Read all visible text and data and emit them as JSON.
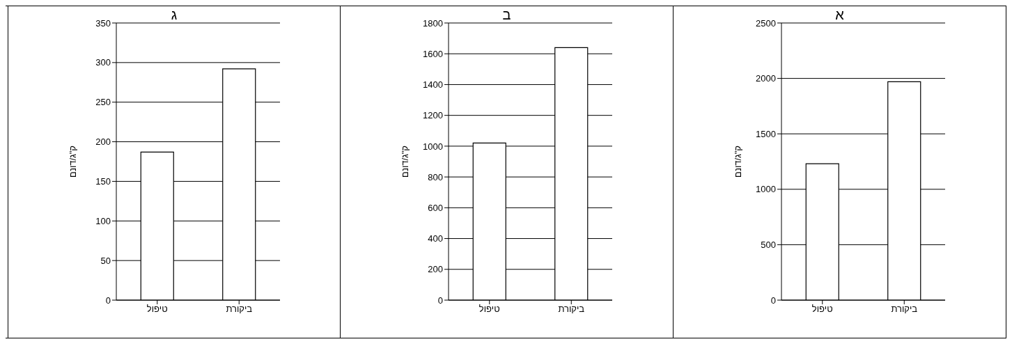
{
  "chart_data": [
    {
      "type": "bar",
      "title": "א",
      "ylabel": "ק\"ג/דונם",
      "categories": [
        "טיפול",
        "ביקורת"
      ],
      "values": [
        1230,
        1970
      ],
      "color": "#ffffff",
      "ylim": [
        0,
        2500
      ],
      "yticks": [
        0,
        500,
        1000,
        1500,
        2000,
        2500
      ],
      "grid": "y"
    },
    {
      "type": "bar",
      "title": "ב",
      "ylabel": "ק\"ג/דונם",
      "categories": [
        "טיפול",
        "ביקורת"
      ],
      "values": [
        1020,
        1640
      ],
      "color": "#ffffff",
      "ylim": [
        0,
        1800
      ],
      "yticks": [
        0,
        200,
        400,
        600,
        800,
        1000,
        1200,
        1400,
        1600,
        1800
      ],
      "grid": "y"
    },
    {
      "type": "bar",
      "title": "ג",
      "ylabel": "ק\"ג/דונם",
      "categories": [
        "טיפול",
        "ביקורת"
      ],
      "values": [
        187,
        292
      ],
      "color": "#ffffff",
      "ylim": [
        0,
        350
      ],
      "yticks": [
        0,
        50,
        100,
        150,
        200,
        250,
        300,
        350
      ],
      "grid": "y"
    }
  ]
}
